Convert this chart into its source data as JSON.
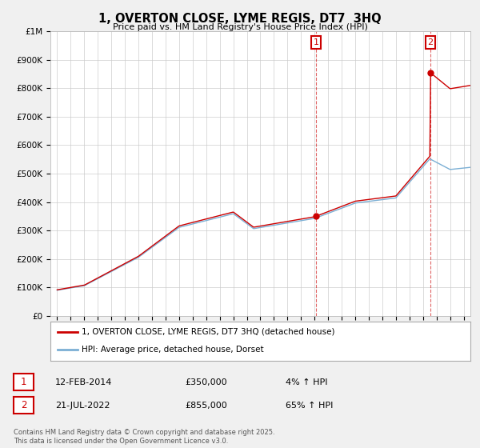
{
  "title": "1, OVERTON CLOSE, LYME REGIS, DT7  3HQ",
  "subtitle": "Price paid vs. HM Land Registry's House Price Index (HPI)",
  "ylim": [
    0,
    1000000
  ],
  "yticks": [
    0,
    100000,
    200000,
    300000,
    400000,
    500000,
    600000,
    700000,
    800000,
    900000,
    1000000
  ],
  "ytick_labels": [
    "£0",
    "£100K",
    "£200K",
    "£300K",
    "£400K",
    "£500K",
    "£600K",
    "£700K",
    "£800K",
    "£900K",
    "£1M"
  ],
  "background_color": "#f0f0f0",
  "plot_bg_color": "#ffffff",
  "hpi_line_color": "#7bafd4",
  "price_line_color": "#cc0000",
  "sale1_date": 2014.1,
  "sale1_price": 350000,
  "sale1_label": "1",
  "sale2_date": 2022.54,
  "sale2_price": 855000,
  "sale2_label": "2",
  "legend_label_price": "1, OVERTON CLOSE, LYME REGIS, DT7 3HQ (detached house)",
  "legend_label_hpi": "HPI: Average price, detached house, Dorset",
  "table_row1": [
    "1",
    "12-FEB-2014",
    "£350,000",
    "4% ↑ HPI"
  ],
  "table_row2": [
    "2",
    "21-JUL-2022",
    "£855,000",
    "65% ↑ HPI"
  ],
  "footnote": "Contains HM Land Registry data © Crown copyright and database right 2025.\nThis data is licensed under the Open Government Licence v3.0.",
  "xlim_start": 1994.5,
  "xlim_end": 2025.5,
  "xticks": [
    1995,
    1996,
    1997,
    1998,
    1999,
    2000,
    2001,
    2002,
    2003,
    2004,
    2005,
    2006,
    2007,
    2008,
    2009,
    2010,
    2011,
    2012,
    2013,
    2014,
    2015,
    2016,
    2017,
    2018,
    2019,
    2020,
    2021,
    2022,
    2023,
    2024,
    2025
  ]
}
